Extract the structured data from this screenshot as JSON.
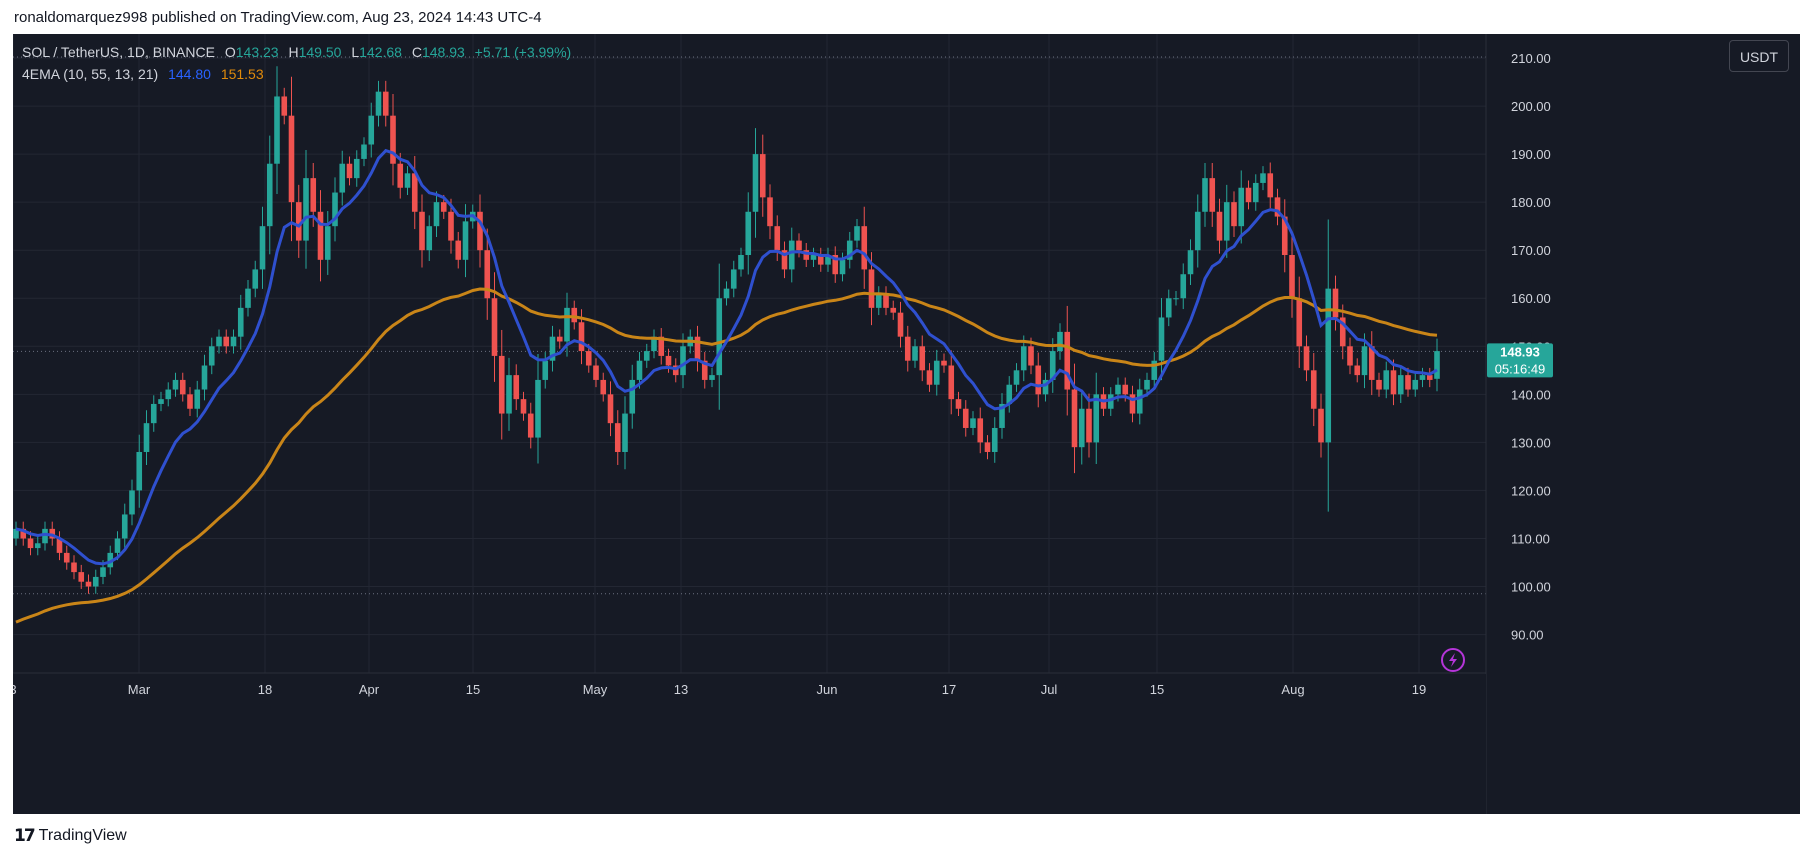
{
  "header": {
    "published_text": "ronaldomarquez998 published on TradingView.com, Aug 23, 2024 14:43 UTC-4"
  },
  "legend": {
    "symbol": "SOL / TetherUS, 1D, BINANCE",
    "open_label": "O",
    "open": "143.23",
    "high_label": "H",
    "high": "149.50",
    "low_label": "L",
    "low": "142.68",
    "close_label": "C",
    "close": "148.93",
    "change": "+5.71 (+3.99%)",
    "indicator": "4EMA (10, 55, 13, 21)",
    "ema_fast": "144.80",
    "ema_slow": "151.53"
  },
  "currency_button": "USDT",
  "last_price": {
    "value": "148.93",
    "countdown": "05:16:49"
  },
  "footer": {
    "brand": "TradingView",
    "logo_icon": "tradingview-logo-icon"
  },
  "colors": {
    "background": "#161a25",
    "up": "#26a69a",
    "down": "#ef5350",
    "ema_fast": "#2962ff",
    "ema_slow": "#c98518",
    "grid": "#232733",
    "text": "#d1d4dc"
  },
  "chart_data": {
    "type": "candlestick",
    "x_tick_labels": [
      "3",
      "Mar",
      "18",
      "Apr",
      "15",
      "May",
      "13",
      "Jun",
      "17",
      "Jul",
      "15",
      "Aug",
      "19"
    ],
    "y_tick_labels": [
      "90.00",
      "100.00",
      "110.00",
      "120.00",
      "130.00",
      "140.00",
      "150.00",
      "160.00",
      "170.00",
      "180.00",
      "190.00",
      "200.00",
      "210.00"
    ],
    "ylim": [
      82,
      215
    ],
    "grid": true,
    "candles_close": [
      112,
      110,
      108,
      109,
      112,
      110,
      107,
      105,
      103,
      101,
      100,
      102,
      104,
      107,
      110,
      115,
      120,
      128,
      134,
      138,
      139,
      141,
      143,
      140,
      137,
      141,
      146,
      150,
      152,
      150,
      152,
      158,
      162,
      166,
      175,
      188,
      202,
      198,
      180,
      172,
      185,
      178,
      168,
      175,
      182,
      188,
      185,
      189,
      192,
      198,
      203,
      198,
      188,
      183,
      186,
      178,
      170,
      175,
      180,
      178,
      172,
      168,
      176,
      178,
      170,
      160,
      148,
      136,
      144,
      139,
      136,
      131,
      143,
      147,
      152,
      151,
      158,
      155,
      149,
      146,
      143,
      140,
      134,
      128,
      136,
      143,
      147,
      149,
      152,
      148,
      146,
      144,
      150,
      152,
      147,
      143,
      144,
      160,
      162,
      166,
      169,
      178,
      190,
      181,
      175,
      170,
      166,
      172,
      170,
      168,
      169,
      167,
      169,
      165,
      168,
      172,
      175,
      166,
      158,
      161,
      158,
      157,
      152,
      147,
      150,
      145,
      142,
      147,
      146,
      139,
      137,
      133,
      135,
      130,
      128,
      133,
      138,
      142,
      145,
      150,
      146,
      140,
      143,
      149,
      153,
      141,
      129,
      137,
      130,
      140,
      137,
      140,
      142,
      140,
      136,
      141,
      143,
      147,
      156,
      160,
      160,
      165,
      170,
      178,
      185,
      178,
      172,
      180,
      175,
      183,
      180,
      184,
      186,
      181,
      177,
      169,
      160,
      150,
      145,
      137,
      130,
      162,
      156,
      150,
      146,
      144,
      150,
      143,
      141,
      145,
      140,
      144,
      141,
      143,
      144,
      143,
      149
    ],
    "ema_fast_series_name": "EMA 10",
    "ema_slow_series_name": "EMA 55",
    "last_values": {
      "ema_fast": 144.8,
      "ema_slow": 151.53,
      "close": 148.93
    },
    "lines": [
      {
        "y": 210.2
      },
      {
        "y": 98.5
      },
      {
        "y": 148.93
      }
    ]
  }
}
